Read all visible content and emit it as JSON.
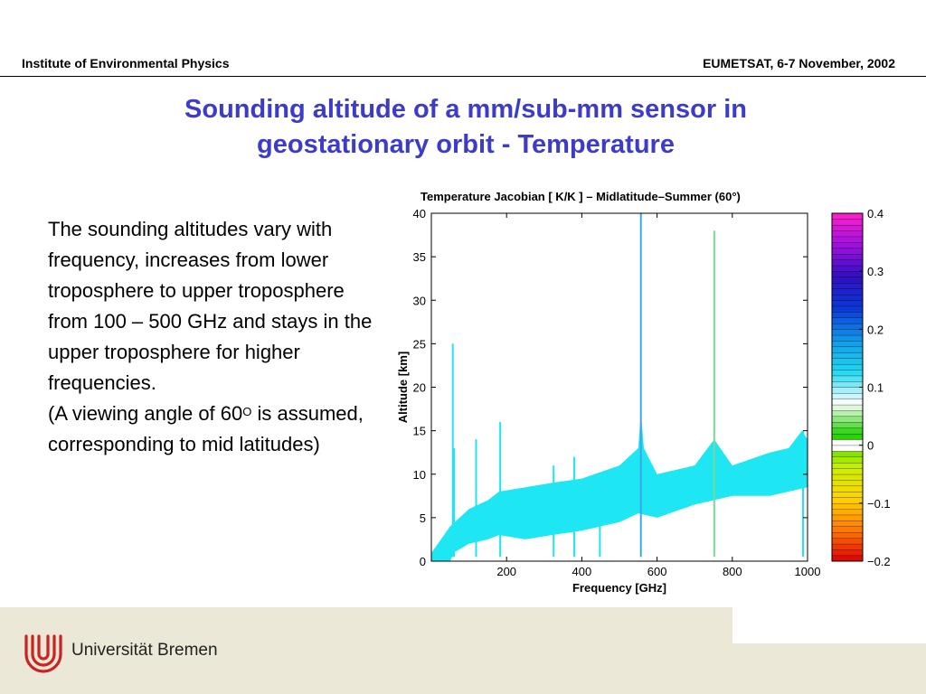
{
  "header": {
    "left": "Institute of Environmental Physics",
    "right": "EUMETSAT, 6-7 November, 2002"
  },
  "title": {
    "line1": "Sounding altitude of a mm/sub-mm sensor in",
    "line2": "geostationary orbit - Temperature"
  },
  "body": {
    "para1": "The sounding altitudes vary with frequency, increases from lower troposphere to upper troposphere from 100 – 500 GHz and stays in the upper troposphere for higher frequencies.",
    "para2_a": "(A viewing angle of 60",
    "para2_sup": "O",
    "para2_b": " is assumed, corresponding to mid latitudes)"
  },
  "footer": {
    "university": "Universität Bremen",
    "logo_color": "#cc2222"
  },
  "chart_data": {
    "type": "heatmap",
    "title": "Temperature Jacobian [ K/K ] – Midlatitude–Summer (60°)",
    "xlabel": "Frequency [GHz]",
    "ylabel": "Altitude [km]",
    "xlim": [
      0,
      1000
    ],
    "ylim": [
      0,
      40
    ],
    "xticks": [
      200,
      400,
      600,
      800,
      1000
    ],
    "yticks": [
      0,
      5,
      10,
      15,
      20,
      25,
      30,
      35,
      40
    ],
    "colorbar": {
      "range": [
        -0.2,
        0.4
      ],
      "ticks": [
        {
          "value": 0.4,
          "label": "0.4"
        },
        {
          "value": 0.3,
          "label": "0.3"
        },
        {
          "value": 0.2,
          "label": "0.2"
        },
        {
          "value": 0.1,
          "label": "0.1"
        },
        {
          "value": 0,
          "label": "0"
        },
        {
          "value": -0.1,
          "label": "−0.1"
        },
        {
          "value": -0.2,
          "label": "−0.2"
        }
      ],
      "colors": [
        "#e00000",
        "#ff7a00",
        "#ffd400",
        "#c8f000",
        "#20d000",
        "#ffffff",
        "#20d8f0",
        "#1098e8",
        "#0a38d8",
        "#3010c0",
        "#a010e0",
        "#ff20c8"
      ]
    },
    "band_color": "#1ee6f2",
    "band_lower": [
      [
        1,
        0
      ],
      [
        50,
        0
      ],
      [
        60,
        1
      ],
      [
        80,
        1.5
      ],
      [
        100,
        2
      ],
      [
        150,
        2.5
      ],
      [
        180,
        3
      ],
      [
        250,
        2.5
      ],
      [
        320,
        3
      ],
      [
        400,
        3.5
      ],
      [
        500,
        4.5
      ],
      [
        550,
        5.5
      ],
      [
        600,
        5
      ],
      [
        700,
        6.5
      ],
      [
        800,
        7.5
      ],
      [
        900,
        7.5
      ],
      [
        1000,
        8.5
      ]
    ],
    "band_upper": [
      [
        1,
        1
      ],
      [
        50,
        4
      ],
      [
        100,
        6
      ],
      [
        150,
        7
      ],
      [
        180,
        8
      ],
      [
        250,
        8.5
      ],
      [
        320,
        9
      ],
      [
        400,
        9.5
      ],
      [
        500,
        11
      ],
      [
        550,
        13
      ],
      [
        557,
        17
      ],
      [
        565,
        13
      ],
      [
        600,
        10
      ],
      [
        700,
        11
      ],
      [
        752,
        14
      ],
      [
        800,
        11
      ],
      [
        900,
        12.5
      ],
      [
        950,
        13
      ],
      [
        985,
        15
      ],
      [
        1000,
        14
      ]
    ],
    "spikes": [
      {
        "x": 57,
        "top": 25,
        "color": "#1ee6f2"
      },
      {
        "x": 60,
        "top": 13,
        "color": "#1ee6f2"
      },
      {
        "x": 119,
        "top": 14,
        "color": "#1ee6f2"
      },
      {
        "x": 183,
        "top": 16,
        "color": "#1ee6f2"
      },
      {
        "x": 325,
        "top": 11,
        "color": "#1ee6f2"
      },
      {
        "x": 380,
        "top": 12,
        "color": "#1ee6f2"
      },
      {
        "x": 448,
        "top": 10,
        "color": "#1ee6f2"
      },
      {
        "x": 557,
        "top": 40,
        "color": "#3aa6e8"
      },
      {
        "x": 752,
        "top": 38,
        "color": "#7ad89a"
      },
      {
        "x": 988,
        "top": 15,
        "color": "#1ee6f2"
      }
    ]
  }
}
